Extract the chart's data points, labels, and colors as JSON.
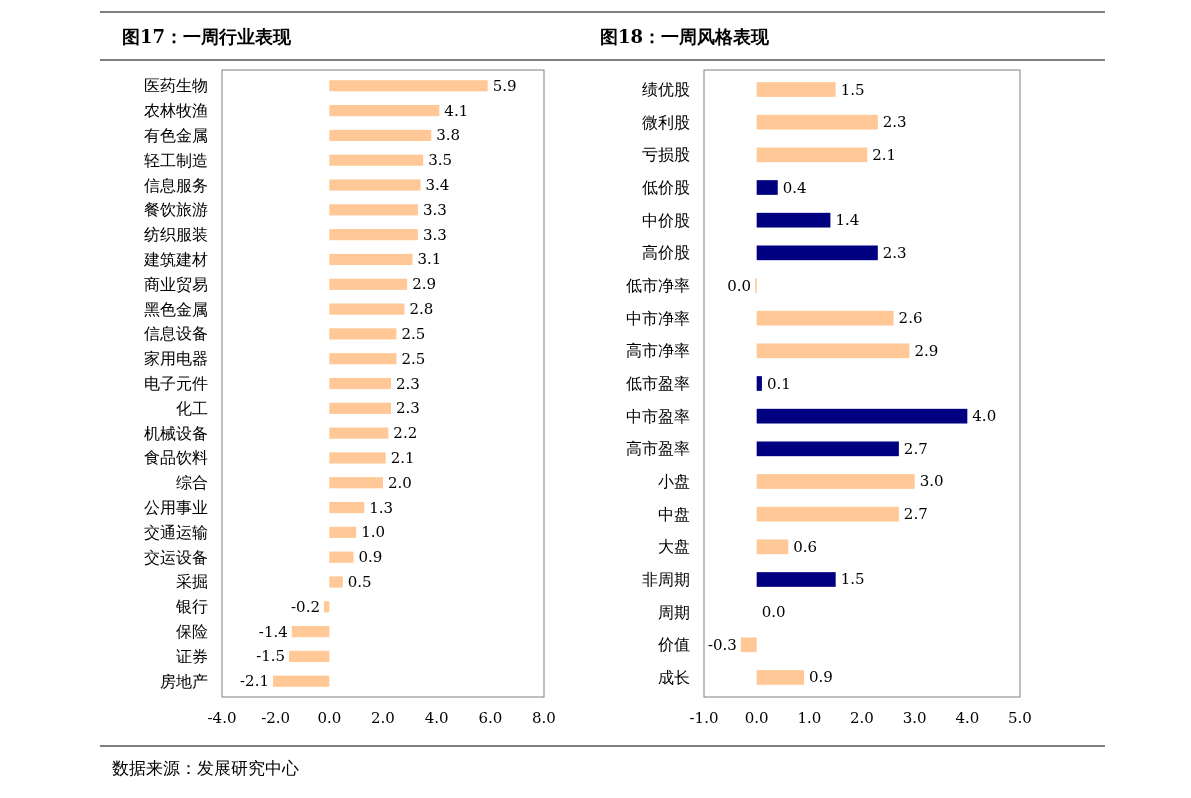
{
  "chart_data": [
    {
      "type": "bar",
      "orientation": "horizontal",
      "title": "图17：一周行业表现",
      "categories": [
        "医药生物",
        "农林牧渔",
        "有色金属",
        "轻工制造",
        "信息服务",
        "餐饮旅游",
        "纺织服装",
        "建筑建材",
        "商业贸易",
        "黑色金属",
        "信息设备",
        "家用电器",
        "电子元件",
        "化工",
        "机械设备",
        "食品饮料",
        "综合",
        "公用事业",
        "交通运输",
        "交运设备",
        "采掘",
        "银行",
        "保险",
        "证券",
        "房地产"
      ],
      "values": [
        5.9,
        4.1,
        3.8,
        3.5,
        3.4,
        3.3,
        3.3,
        3.1,
        2.9,
        2.8,
        2.5,
        2.5,
        2.3,
        2.3,
        2.2,
        2.1,
        2.0,
        1.3,
        1.0,
        0.9,
        0.5,
        -0.2,
        -1.4,
        -1.5,
        -2.1
      ],
      "value_labels": [
        "5.9",
        "4.1",
        "3.8",
        "3.5",
        "3.4",
        "3.3",
        "3.3",
        "3.1",
        "2.9",
        "2.8",
        "2.5",
        "2.5",
        "2.3",
        "2.3",
        "2.2",
        "2.1",
        "2.0",
        "1.3",
        "1.0",
        "0.9",
        "0.5",
        "-0.2",
        "-1.4",
        "-1.5",
        "-2.1"
      ],
      "color": "#ffc896",
      "xlim": [
        -4,
        8
      ],
      "xticks": [
        {
          "value": -4,
          "label": "-4.0"
        },
        {
          "value": -2,
          "label": "-2.0"
        },
        {
          "value": 0,
          "label": "0.0"
        },
        {
          "value": 2,
          "label": "2.0"
        },
        {
          "value": 4,
          "label": "4.0"
        },
        {
          "value": 6,
          "label": "6.0"
        },
        {
          "value": 8,
          "label": "8.0"
        }
      ],
      "grid": false,
      "annotations": [
        "数据来源：发展研究中心"
      ]
    },
    {
      "type": "bar",
      "orientation": "horizontal",
      "title": "图18：一周风格表现",
      "categories": [
        "绩优股",
        "微利股",
        "亏损股",
        "低价股",
        "中价股",
        "高价股",
        "低市净率",
        "中市净率",
        "高市净率",
        "低市盈率",
        "中市盈率",
        "高市盈率",
        "小盘",
        "中盘",
        "大盘",
        "非周期",
        "周期",
        "价值",
        "成长"
      ],
      "values": [
        1.5,
        2.3,
        2.1,
        0.4,
        1.4,
        2.3,
        -0.03,
        2.6,
        2.9,
        0.1,
        4.0,
        2.7,
        3.0,
        2.7,
        0.6,
        1.5,
        0.0,
        -0.3,
        0.9
      ],
      "value_labels": [
        "1.5",
        "2.3",
        "2.1",
        "0.4",
        "1.4",
        "2.3",
        "0.0",
        "2.6",
        "2.9",
        "0.1",
        "4.0",
        "2.7",
        "3.0",
        "2.7",
        "0.6",
        "1.5",
        "0.0",
        "-0.3",
        "0.9"
      ],
      "colors": [
        "#ffc896",
        "#ffc896",
        "#ffc896",
        "#000080",
        "#000080",
        "#000080",
        "#ffc896",
        "#ffc896",
        "#ffc896",
        "#000080",
        "#000080",
        "#000080",
        "#ffc896",
        "#ffc896",
        "#ffc896",
        "#000080",
        "#ffc896",
        "#ffc896",
        "#ffc896"
      ],
      "xlim": [
        -1,
        5
      ],
      "xticks": [
        {
          "value": -1,
          "label": "-1.0"
        },
        {
          "value": 0,
          "label": "0.0"
        },
        {
          "value": 1,
          "label": "1.0"
        },
        {
          "value": 2,
          "label": "2.0"
        },
        {
          "value": 3,
          "label": "3.0"
        },
        {
          "value": 4,
          "label": "4.0"
        },
        {
          "value": 5,
          "label": "5.0"
        }
      ],
      "grid": false
    }
  ]
}
